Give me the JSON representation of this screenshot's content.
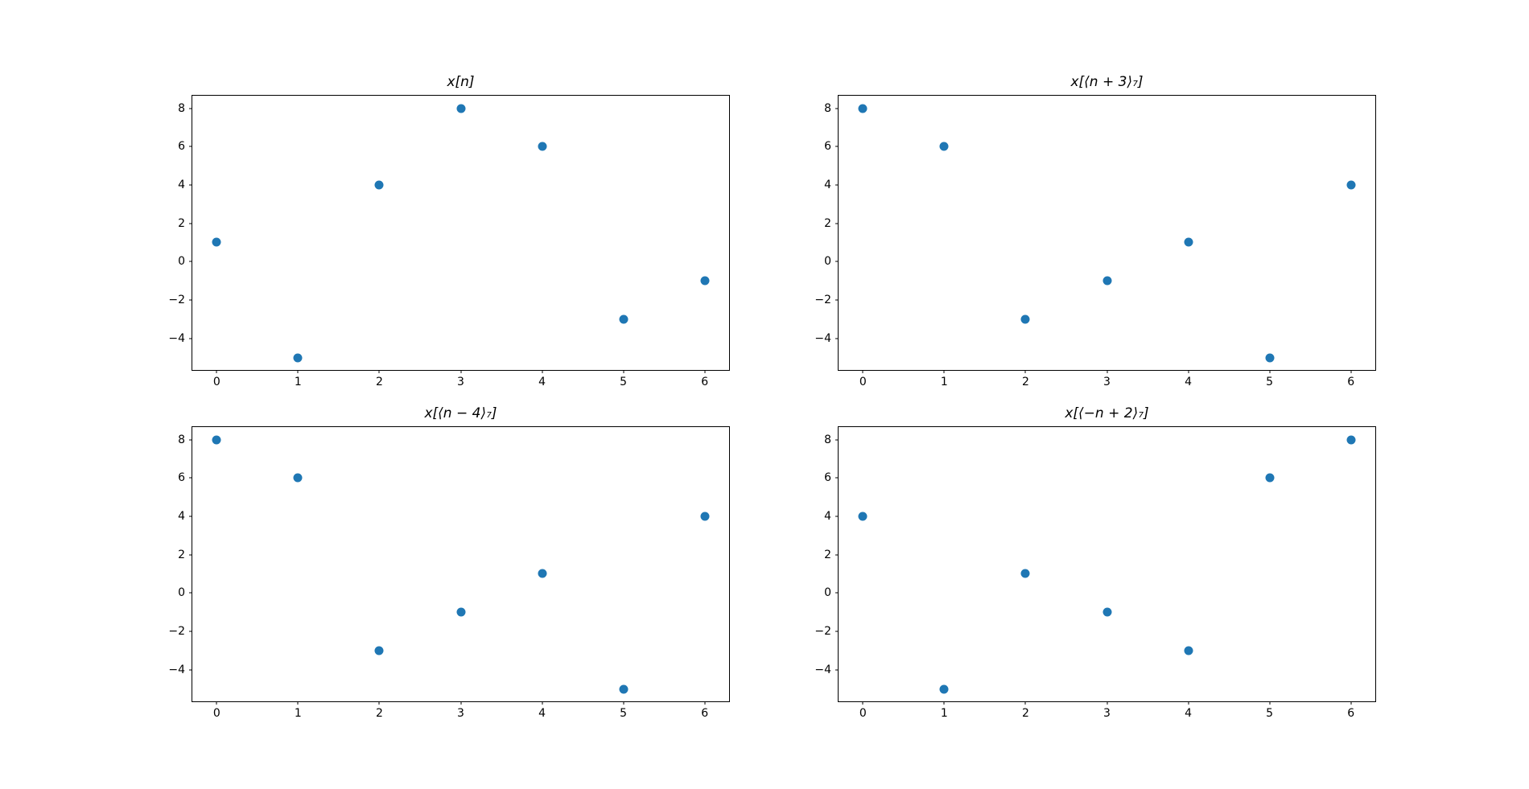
{
  "figure": {
    "background": "#ffffff",
    "marker_color": "#1f77b4",
    "spine_color": "#000000",
    "tick_color": "#000000"
  },
  "chart_data": [
    {
      "id": "x-n",
      "type": "scatter",
      "title": "x[n]",
      "x": [
        0,
        1,
        2,
        3,
        4,
        5,
        6
      ],
      "y": [
        1,
        -5,
        4,
        8,
        6,
        -3,
        -1
      ],
      "xlim": [
        -0.3,
        6.3
      ],
      "ylim": [
        -5.65,
        8.65
      ],
      "xticks": [
        0,
        1,
        2,
        3,
        4,
        5,
        6
      ],
      "yticks": [
        -4,
        -2,
        0,
        2,
        4,
        6,
        8
      ],
      "xlabel": "",
      "ylabel": "",
      "grid": false,
      "legend": "none",
      "marker": "circle"
    },
    {
      "id": "x-n-plus-3-mod-7",
      "type": "scatter",
      "title": "x[⟨n + 3⟩₇]",
      "x": [
        0,
        1,
        2,
        3,
        4,
        5,
        6
      ],
      "y": [
        8,
        6,
        -3,
        -1,
        1,
        -5,
        4
      ],
      "xlim": [
        -0.3,
        6.3
      ],
      "ylim": [
        -5.65,
        8.65
      ],
      "xticks": [
        0,
        1,
        2,
        3,
        4,
        5,
        6
      ],
      "yticks": [
        -4,
        -2,
        0,
        2,
        4,
        6,
        8
      ],
      "xlabel": "",
      "ylabel": "",
      "grid": false,
      "legend": "none",
      "marker": "circle"
    },
    {
      "id": "x-n-minus-4-mod-7",
      "type": "scatter",
      "title": "x[⟨n − 4⟩₇]",
      "x": [
        0,
        1,
        2,
        3,
        4,
        5,
        6
      ],
      "y": [
        8,
        6,
        -3,
        -1,
        1,
        -5,
        4
      ],
      "xlim": [
        -0.3,
        6.3
      ],
      "ylim": [
        -5.65,
        8.65
      ],
      "xticks": [
        0,
        1,
        2,
        3,
        4,
        5,
        6
      ],
      "yticks": [
        -4,
        -2,
        0,
        2,
        4,
        6,
        8
      ],
      "xlabel": "",
      "ylabel": "",
      "grid": false,
      "legend": "none",
      "marker": "circle"
    },
    {
      "id": "x-minus-n-plus-2-mod-7",
      "type": "scatter",
      "title": "x[⟨−n + 2⟩₇]",
      "x": [
        0,
        1,
        2,
        3,
        4,
        5,
        6
      ],
      "y": [
        4,
        -5,
        1,
        -1,
        -3,
        6,
        8
      ],
      "xlim": [
        -0.3,
        6.3
      ],
      "ylim": [
        -5.65,
        8.65
      ],
      "xticks": [
        0,
        1,
        2,
        3,
        4,
        5,
        6
      ],
      "yticks": [
        -4,
        -2,
        0,
        2,
        4,
        6,
        8
      ],
      "xlabel": "",
      "ylabel": "",
      "grid": false,
      "legend": "none",
      "marker": "circle"
    }
  ]
}
